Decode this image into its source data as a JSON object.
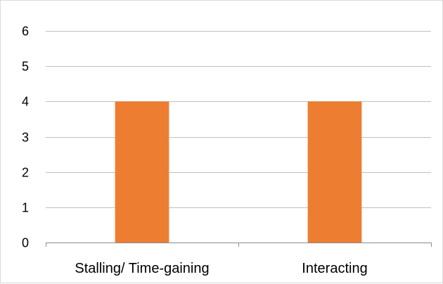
{
  "chart_data": {
    "type": "bar",
    "categories": [
      "Stalling/ Time-gaining",
      "Interacting"
    ],
    "series": [
      {
        "values": [
          4,
          4
        ]
      }
    ],
    "title": "",
    "xlabel": "",
    "ylabel": "",
    "ylim": [
      0,
      6
    ],
    "yticks": [
      0,
      1,
      2,
      3,
      4,
      5,
      6
    ],
    "grid": true,
    "legend": "none",
    "colors": {
      "bar": "#ED7D31",
      "grid": "#BFBFBF",
      "axis": "#8C8C8C"
    }
  }
}
